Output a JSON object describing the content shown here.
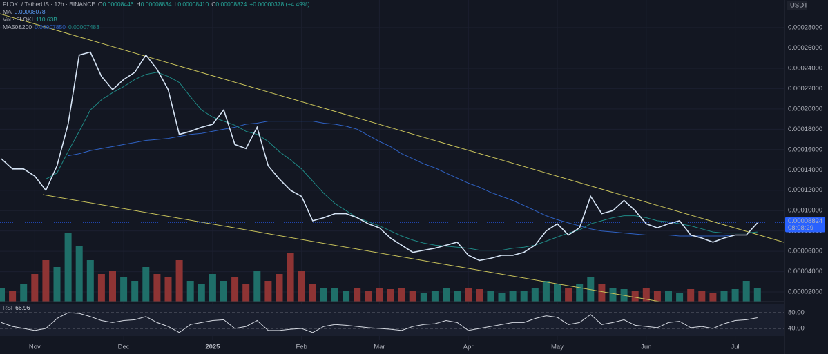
{
  "chart_data": {
    "type": "line",
    "title": "FLOKI / TetherUS · 12h · BINANCE",
    "ohlc": [
      {
        "key": "O",
        "text": "0.00008446"
      },
      {
        "key": "H",
        "text": "0.00008834"
      },
      {
        "key": "L",
        "text": "0.00008410"
      },
      {
        "key": "C",
        "text": "0.00008824"
      }
    ],
    "change": "+0.00000378 (+4.49%)",
    "ma_label": "MA",
    "ma_value": "0.00008078",
    "vol_label": "Vol · FLOKI",
    "vol_value": "110.63B",
    "ma50200_label": "MA50&200",
    "ma50_value": "0.00007850",
    "ma200_value": "0.00007483",
    "currency": "USDT",
    "price_tag": 8.824e-05,
    "countdown": "08:08:29",
    "categories": [
      null,
      null,
      null,
      "Nov",
      null,
      null,
      null,
      null,
      null,
      null,
      null,
      "Dec",
      null,
      null,
      null,
      null,
      null,
      null,
      null,
      "2025",
      null,
      null,
      null,
      null,
      null,
      null,
      null,
      "Feb",
      null,
      null,
      null,
      null,
      null,
      null,
      "Mar",
      null,
      null,
      null,
      null,
      null,
      null,
      null,
      "Apr",
      null,
      null,
      null,
      null,
      null,
      null,
      null,
      "May",
      null,
      null,
      null,
      null,
      null,
      null,
      null,
      "Jun",
      null,
      null,
      null,
      null,
      null,
      null,
      null,
      "Jul",
      null,
      null
    ],
    "series": [
      {
        "color": "#d6e4f5",
        "values": [
          0.000151,
          0.000141,
          0.000141,
          0.000134,
          0.00012,
          0.000144,
          0.000185,
          0.000253,
          0.000256,
          0.000232,
          0.000219,
          0.000229,
          0.000236,
          0.000253,
          0.000239,
          0.000219,
          0.000175,
          0.000178,
          0.000182,
          0.000185,
          0.000199,
          0.000165,
          0.000161,
          0.000182,
          0.000144,
          0.000131,
          0.00012,
          0.000114,
          9e-05,
          9.3e-05,
          9.7e-05,
          9.7e-05,
          9.3e-05,
          8.7e-05,
          8.3e-05,
          7.3e-05,
          6.6e-05,
          5.9e-05,
          6.1e-05,
          6.3e-05,
          6.6e-05,
          6.9e-05,
          5.6e-05,
          5.1e-05,
          5.3e-05,
          5.6e-05,
          5.6e-05,
          5.9e-05,
          6.6e-05,
          8e-05,
          8.7e-05,
          7.6e-05,
          8.3e-05,
          0.000114,
          9.7e-05,
          0.0001,
          0.00011,
          0.0001,
          8.7e-05,
          8.3e-05,
          8.7e-05,
          9e-05,
          7.6e-05,
          7.3e-05,
          6.9e-05,
          7.3e-05,
          7.6e-05,
          7.6e-05,
          8.8e-05
        ]
      },
      {
        "color": "#1f8a86",
        "values": [
          null,
          null,
          null,
          null,
          0.000131,
          0.000137,
          0.000158,
          0.000178,
          0.000199,
          0.000209,
          0.000216,
          0.000222,
          0.000229,
          0.000234,
          0.000236,
          0.000232,
          0.000226,
          0.000212,
          0.000199,
          0.000192,
          0.000188,
          0.000184,
          0.000178,
          0.000175,
          0.000168,
          0.000158,
          0.00015,
          0.000141,
          0.000129,
          0.000117,
          0.000107,
          0.0001,
          9.3e-05,
          8.9e-05,
          8.5e-05,
          8e-05,
          7.5e-05,
          7.1e-05,
          6.8e-05,
          6.6e-05,
          6.5e-05,
          6.4e-05,
          6.3e-05,
          6.1e-05,
          6.1e-05,
          6.1e-05,
          6.3e-05,
          6.4e-05,
          6.6e-05,
          7e-05,
          7.4e-05,
          7.8e-05,
          8.1e-05,
          8.7e-05,
          9e-05,
          9.3e-05,
          9.5e-05,
          9.5e-05,
          9.3e-05,
          9e-05,
          8.9e-05,
          8.7e-05,
          8.5e-05,
          8.2e-05,
          7.9e-05,
          7.8e-05,
          7.8e-05,
          7.8e-05,
          7.9e-05
        ]
      },
      {
        "color": "#2f62c4",
        "values": [
          null,
          null,
          null,
          null,
          null,
          null,
          0.000154,
          0.000156,
          0.000159,
          0.000161,
          0.000163,
          0.000165,
          0.000167,
          0.000169,
          0.00017,
          0.000171,
          0.000173,
          0.000175,
          0.000176,
          0.000178,
          0.00018,
          0.000182,
          0.000185,
          0.000186,
          0.000188,
          0.000188,
          0.000188,
          0.000188,
          0.000188,
          0.000186,
          0.000185,
          0.000183,
          0.00018,
          0.000174,
          0.000168,
          0.000163,
          0.000156,
          0.000151,
          0.000146,
          0.000142,
          0.000137,
          0.000132,
          0.000127,
          0.000123,
          0.000118,
          0.000114,
          0.00011,
          0.000105,
          0.0001,
          9.5e-05,
          9.1e-05,
          8.8e-05,
          8.5e-05,
          8.2e-05,
          8e-05,
          7.9e-05,
          7.8e-05,
          7.7e-05,
          7.6e-05,
          7.6e-05,
          7.6e-05,
          7.5e-05,
          7.5e-05,
          7.5e-05,
          7.5e-05,
          7.5e-05,
          7.6e-05,
          7.6e-05,
          7.6e-05
        ]
      }
    ],
    "ylim": [
      0,
      0.00029
    ],
    "yticks": [
      {
        "value": 2e-05,
        "label": "0.00002000"
      },
      {
        "value": 4e-05,
        "label": "0.00004000"
      },
      {
        "value": 6e-05,
        "label": "0.00006000"
      },
      {
        "value": 8e-05,
        "label": "0.00008000"
      },
      {
        "value": 0.0001,
        "label": "0.00010000"
      },
      {
        "value": 0.00012,
        "label": "0.00012000"
      },
      {
        "value": 0.00014,
        "label": "0.00014000"
      },
      {
        "value": 0.00016,
        "label": "0.00016000"
      },
      {
        "value": 0.00018,
        "label": "0.00018000"
      },
      {
        "value": 0.0002,
        "label": "0.00020000"
      },
      {
        "value": 0.00022,
        "label": "0.00022000"
      },
      {
        "value": 0.00024,
        "label": "0.00024000"
      },
      {
        "value": 0.00026,
        "label": "0.00026000"
      },
      {
        "value": 0.00028,
        "label": "0.00028000"
      }
    ],
    "grid": true,
    "volume": {
      "up_color": "#1f6f69",
      "down_color": "#8e3434",
      "ylim": [
        0,
        1500
      ],
      "values": [
        100,
        75,
        125,
        200,
        300,
        250,
        500,
        400,
        300,
        200,
        225,
        175,
        150,
        250,
        200,
        175,
        300,
        150,
        125,
        200,
        150,
        175,
        125,
        225,
        150,
        200,
        350,
        225,
        125,
        100,
        100,
        75,
        100,
        75,
        100,
        90,
        100,
        75,
        60,
        75,
        100,
        75,
        100,
        90,
        75,
        60,
        75,
        75,
        100,
        150,
        125,
        100,
        125,
        175,
        125,
        100,
        90,
        75,
        100,
        75,
        75,
        60,
        90,
        75,
        60,
        75,
        90,
        150,
        100
      ]
    },
    "rsi": {
      "label": "RSI",
      "value_text": "66.96",
      "color": "#d4d8e0",
      "ylim": [
        20,
        100
      ],
      "yticks": [
        {
          "value": 80,
          "label": "80.00"
        },
        {
          "value": 40,
          "label": "40.00"
        }
      ],
      "values": [
        55,
        45,
        40,
        35,
        40,
        65,
        80,
        78,
        70,
        60,
        55,
        60,
        62,
        70,
        55,
        45,
        30,
        50,
        55,
        60,
        62,
        40,
        45,
        60,
        35,
        35,
        38,
        40,
        30,
        45,
        50,
        48,
        45,
        42,
        40,
        38,
        35,
        45,
        50,
        52,
        60,
        55,
        35,
        40,
        45,
        50,
        55,
        55,
        65,
        72,
        68,
        50,
        55,
        75,
        50,
        55,
        62,
        48,
        45,
        42,
        55,
        58,
        42,
        45,
        40,
        52,
        60,
        62,
        66.96
      ]
    }
  }
}
